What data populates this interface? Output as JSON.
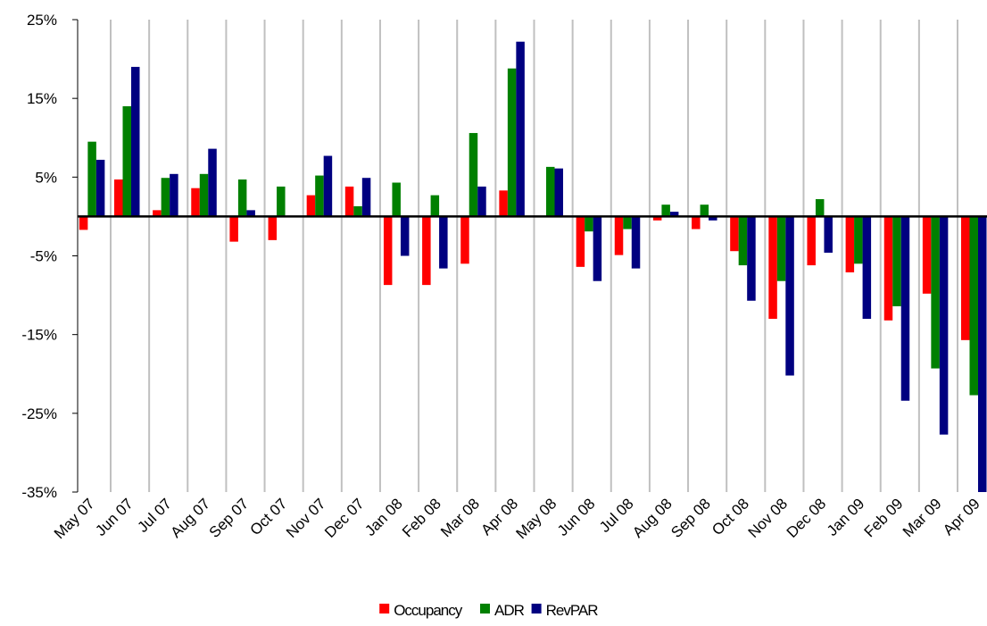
{
  "chart_data": {
    "type": "bar",
    "categories": [
      "May 07",
      "Jun 07",
      "Jul 07",
      "Aug 07",
      "Sep 07",
      "Oct 07",
      "Nov 07",
      "Dec 07",
      "Jan 08",
      "Feb 08",
      "Mar 08",
      "Apr 08",
      "May 08",
      "Jun 08",
      "Jul 08",
      "Aug 08",
      "Sep 08",
      "Oct 08",
      "Nov 08",
      "Dec 08",
      "Jan 09",
      "Feb 09",
      "Mar 09",
      "Apr 09"
    ],
    "series": [
      {
        "name": "Occupancy",
        "color": "#ff0000",
        "values": [
          -1.7,
          4.7,
          0.8,
          3.6,
          -3.2,
          -3.0,
          2.7,
          3.8,
          -8.7,
          -8.7,
          -6.0,
          3.3,
          0,
          -6.4,
          -4.9,
          -0.5,
          -1.6,
          -4.4,
          -13.0,
          -6.2,
          -7.1,
          -13.2,
          -9.8,
          -15.7
        ]
      },
      {
        "name": "ADR",
        "color": "#008000",
        "values": [
          9.5,
          14.0,
          4.9,
          5.4,
          4.7,
          3.8,
          5.2,
          1.3,
          4.3,
          2.7,
          10.6,
          18.8,
          6.3,
          -1.9,
          -1.6,
          1.5,
          1.5,
          -6.2,
          -8.2,
          2.2,
          -6.0,
          -11.4,
          -19.3,
          -22.7
        ]
      },
      {
        "name": "RevPAR",
        "color": "#000080",
        "values": [
          7.2,
          19.0,
          5.4,
          8.6,
          0.8,
          0,
          7.7,
          4.9,
          -5.0,
          -6.6,
          3.8,
          22.2,
          6.1,
          -8.2,
          -6.6,
          0.6,
          -0.5,
          -10.7,
          -20.2,
          -4.6,
          -13.0,
          -23.4,
          -27.7,
          -35.0
        ]
      }
    ],
    "ylim": [
      -35,
      25
    ],
    "yticks": [
      {
        "value": -35,
        "label": "-35%"
      },
      {
        "value": -25,
        "label": "-25%"
      },
      {
        "value": -15,
        "label": "-15%"
      },
      {
        "value": -5,
        "label": "-5%"
      },
      {
        "value": 5,
        "label": "5%"
      },
      {
        "value": 15,
        "label": "15%"
      },
      {
        "value": 25,
        "label": "25%"
      }
    ],
    "legend": "bottom"
  }
}
